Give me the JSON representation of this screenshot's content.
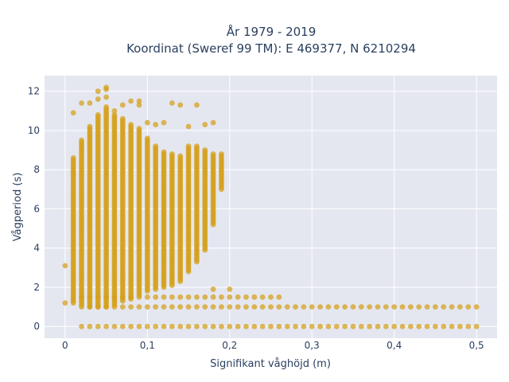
{
  "chart_data": {
    "type": "scatter",
    "title": [
      "År 1979 - 2019",
      "Koordinat (Sweref 99 TM): E 469377, N 6210294"
    ],
    "xlabel": "Signifikant våghöjd (m)",
    "ylabel": "Vågperiod (s)",
    "xlim": [
      -0.025,
      0.525
    ],
    "ylim": [
      -0.6,
      12.8
    ],
    "x_ticks": [
      0,
      0.1,
      0.2,
      0.3,
      0.4,
      0.5
    ],
    "x_tick_labels": [
      "0",
      "0,1",
      "0,2",
      "0,3",
      "0,4",
      "0,5"
    ],
    "y_ticks": [
      0,
      2,
      4,
      6,
      8,
      10,
      12
    ],
    "y_tick_labels": [
      "0",
      "2",
      "4",
      "6",
      "8",
      "10",
      "12"
    ],
    "grid": true,
    "legend": "none",
    "marker_color": "#d4a017",
    "plot_background": "#e5e7f0",
    "dense_columns": [
      {
        "x": 0.01,
        "y_min": 1.2,
        "y_max": 8.6
      },
      {
        "x": 0.02,
        "y_min": 1.1,
        "y_max": 9.5
      },
      {
        "x": 0.03,
        "y_min": 1.0,
        "y_max": 10.2
      },
      {
        "x": 0.04,
        "y_min": 1.0,
        "y_max": 10.8
      },
      {
        "x": 0.05,
        "y_min": 1.0,
        "y_max": 11.2
      },
      {
        "x": 0.06,
        "y_min": 1.1,
        "y_max": 10.8
      },
      {
        "x": 0.07,
        "y_min": 1.3,
        "y_max": 10.6
      },
      {
        "x": 0.08,
        "y_min": 1.4,
        "y_max": 10.3
      },
      {
        "x": 0.09,
        "y_min": 1.6,
        "y_max": 10.1
      },
      {
        "x": 0.1,
        "y_min": 1.8,
        "y_max": 9.6
      },
      {
        "x": 0.11,
        "y_min": 1.9,
        "y_max": 9.2
      },
      {
        "x": 0.12,
        "y_min": 2.0,
        "y_max": 8.9
      },
      {
        "x": 0.13,
        "y_min": 2.1,
        "y_max": 8.8
      },
      {
        "x": 0.14,
        "y_min": 2.3,
        "y_max": 8.7
      },
      {
        "x": 0.15,
        "y_min": 2.8,
        "y_max": 9.2
      },
      {
        "x": 0.16,
        "y_min": 3.3,
        "y_max": 9.2
      },
      {
        "x": 0.17,
        "y_min": 3.9,
        "y_max": 9.0
      },
      {
        "x": 0.18,
        "y_min": 5.2,
        "y_max": 8.8
      },
      {
        "x": 0.19,
        "y_min": 7.0,
        "y_max": 8.8
      }
    ],
    "outliers": [
      {
        "x": 0.0,
        "y": 3.1
      },
      {
        "x": 0.0,
        "y": 1.2
      },
      {
        "x": 0.01,
        "y": 10.9
      },
      {
        "x": 0.02,
        "y": 11.4
      },
      {
        "x": 0.03,
        "y": 11.4
      },
      {
        "x": 0.04,
        "y": 12.0
      },
      {
        "x": 0.04,
        "y": 11.6
      },
      {
        "x": 0.05,
        "y": 12.2
      },
      {
        "x": 0.05,
        "y": 12.1
      },
      {
        "x": 0.05,
        "y": 11.7
      },
      {
        "x": 0.06,
        "y": 11.0
      },
      {
        "x": 0.07,
        "y": 11.3
      },
      {
        "x": 0.08,
        "y": 11.5
      },
      {
        "x": 0.09,
        "y": 11.5
      },
      {
        "x": 0.09,
        "y": 11.3
      },
      {
        "x": 0.1,
        "y": 10.4
      },
      {
        "x": 0.11,
        "y": 10.3
      },
      {
        "x": 0.12,
        "y": 10.4
      },
      {
        "x": 0.13,
        "y": 11.4
      },
      {
        "x": 0.14,
        "y": 11.3
      },
      {
        "x": 0.16,
        "y": 11.3
      },
      {
        "x": 0.15,
        "y": 10.2
      },
      {
        "x": 0.17,
        "y": 10.3
      },
      {
        "x": 0.18,
        "y": 10.4
      },
      {
        "x": 0.18,
        "y": 1.9
      },
      {
        "x": 0.2,
        "y": 1.9
      }
    ],
    "low_period_band": {
      "x_from": 0.02,
      "x_to": 0.5,
      "step": 0.01,
      "y_values": [
        1.0,
        1.5
      ],
      "y_upper_until_x": 0.26
    },
    "zero_period_band": {
      "x_from": 0.02,
      "x_to": 0.5,
      "step": 0.01,
      "y": 0.0
    }
  }
}
